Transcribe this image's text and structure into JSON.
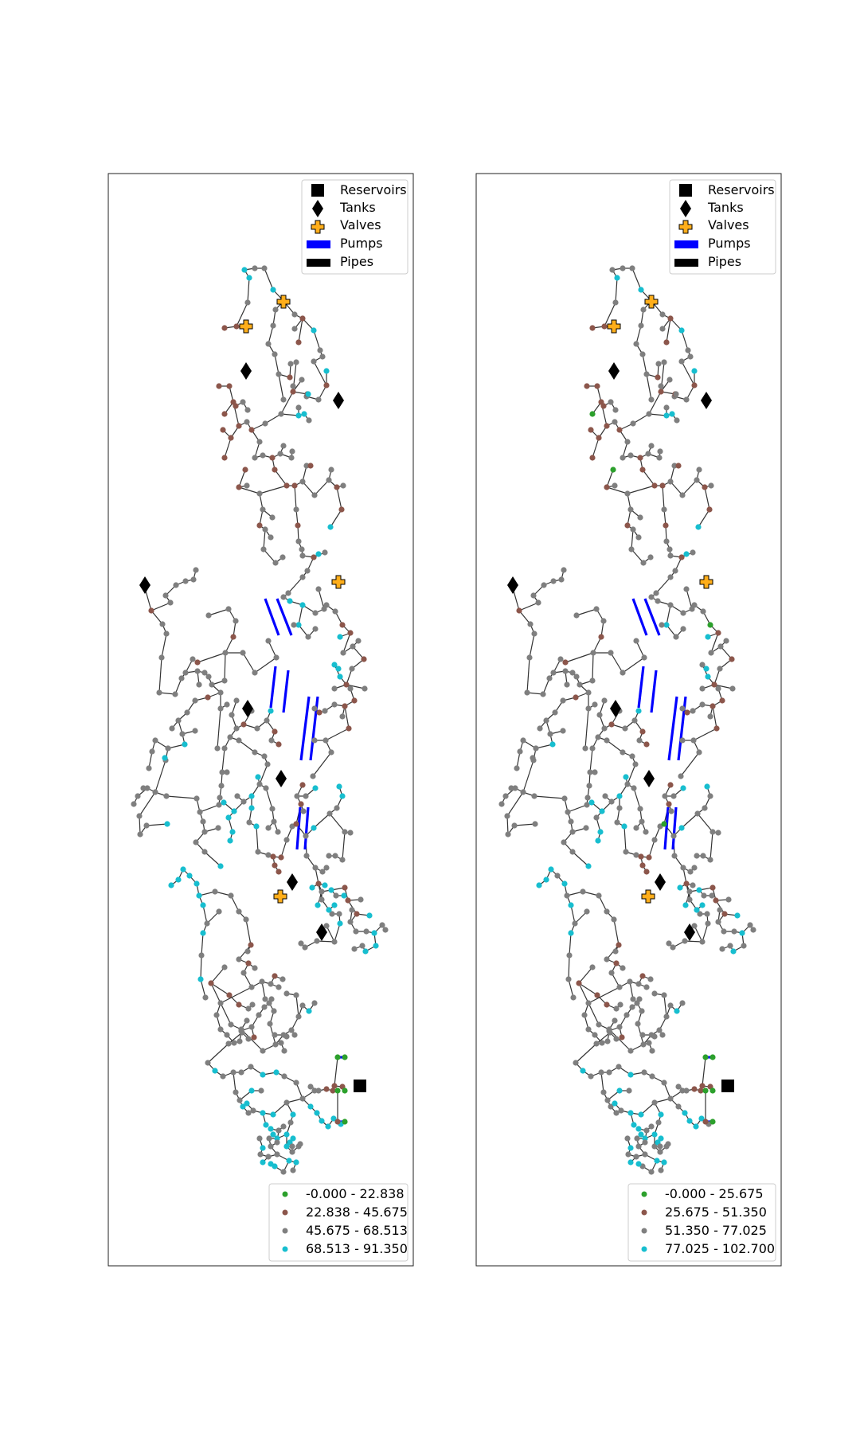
{
  "colors": {
    "class0": "#2ca02c",
    "class1": "#8c564b",
    "class2": "#7f7f7f",
    "class3": "#17becf",
    "pump": "#0000ff",
    "pipe": "#333333",
    "valve": "#ffae1a",
    "reservoir": "#000000",
    "tank": "#000000"
  },
  "icons": {
    "reservoir": "square-marker",
    "tank": "diamond-marker",
    "valve": "plus-marker",
    "pump": "blue-bar",
    "pipe": "black-bar"
  },
  "element_legend": {
    "reservoirs": "Reservoirs",
    "tanks": "Tanks",
    "valves": "Valves",
    "pumps": "Pumps",
    "pipes": "Pipes"
  },
  "panels": [
    {
      "name": "left",
      "classes": [
        "-0.000 - 22.838",
        "22.838 - 45.675",
        "45.675 - 68.513",
        "68.513 - 91.350"
      ]
    },
    {
      "name": "right",
      "classes": [
        "-0.000 - 25.675",
        "25.675 - 51.350",
        "51.350 - 77.025",
        "77.025 - 102.700"
      ]
    }
  ]
}
